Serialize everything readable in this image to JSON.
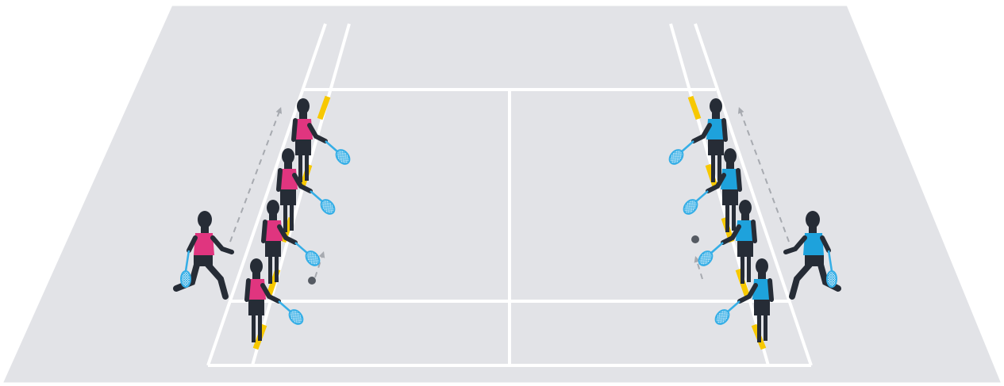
{
  "scene": {
    "colors": {
      "background": "#ffffff",
      "floor": "#e2e3e7",
      "floor_edge": "#ffffff",
      "court_line": "#ffffff",
      "marker": "#f7c800",
      "team_left": "#e0357f",
      "team_right": "#1ea2dc",
      "body": "#262c36",
      "racket": "#35aee6",
      "shuttle": "#555a62",
      "arrow": "#a7aab0"
    },
    "teams": [
      {
        "side": "left",
        "queue_players": 4,
        "runner_players": 1,
        "uniform": "pink"
      },
      {
        "side": "right",
        "queue_players": 4,
        "runner_players": 1,
        "uniform": "blue"
      }
    ],
    "markers_per_side": 4,
    "shuttles": 2,
    "icons": [
      "badminton-player-icon",
      "badminton-racket-icon",
      "shuttlecock-icon",
      "dashed-arrow-icon",
      "floor-marker-icon"
    ]
  }
}
